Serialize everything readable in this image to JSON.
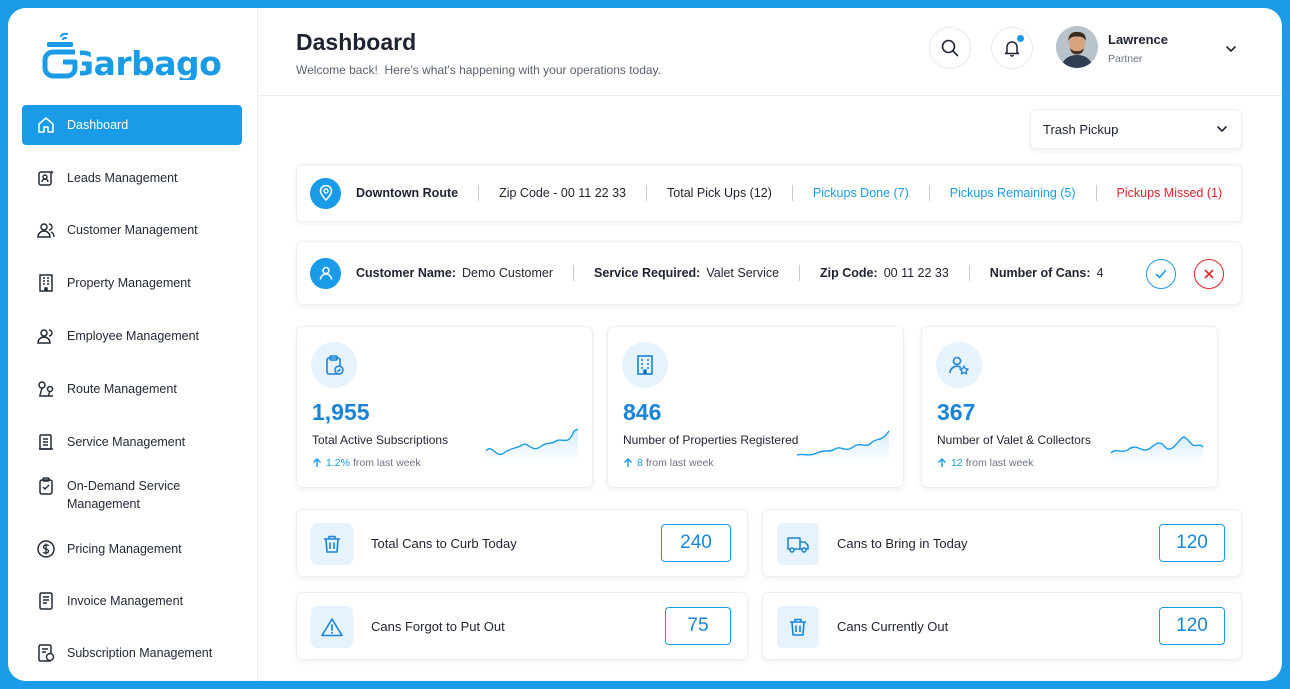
{
  "brand": {
    "name": "Garbago",
    "accent": "#1a9be8"
  },
  "sidebar": {
    "items": [
      {
        "label": "Dashboard",
        "icon": "home-icon",
        "active": true
      },
      {
        "label": "Leads Management",
        "icon": "leads-icon"
      },
      {
        "label": "Customer Management",
        "icon": "users-icon"
      },
      {
        "label": "Property Management",
        "icon": "building-icon"
      },
      {
        "label": "Employee Management",
        "icon": "employee-icon"
      },
      {
        "label": "Route Management",
        "icon": "route-icon"
      },
      {
        "label": "Service Management",
        "icon": "service-icon"
      },
      {
        "label": "On-Demand Service Management",
        "icon": "clipboard-check-icon"
      },
      {
        "label": "Pricing Management",
        "icon": "dollar-icon"
      },
      {
        "label": "Invoice Management",
        "icon": "invoice-icon"
      },
      {
        "label": "Subscription Management",
        "icon": "subscription-icon"
      }
    ]
  },
  "header": {
    "title": "Dashboard",
    "subtitle": "Welcome back!  Here's what's happening with your operations today.",
    "user": {
      "name": "Lawrence",
      "role": "Partner"
    }
  },
  "filter": {
    "selected": "Trash Pickup"
  },
  "route": {
    "name": "Downtown Route",
    "zip": "Zip Code - 00 11 22 33",
    "total": "Total Pick Ups (12)",
    "done": "Pickups Done (7)",
    "remaining": "Pickups Remaining (5)",
    "missed": "Pickups Missed (1)"
  },
  "customer": {
    "name_label": "Customer Name:",
    "name_value": "Demo Customer",
    "service_label": "Service Required:",
    "service_value": "Valet Service",
    "zip_label": "Zip Code:",
    "zip_value": "00 11 22 33",
    "cans_label": "Number of Cans:",
    "cans_value": "4"
  },
  "stats": [
    {
      "value": "1,955",
      "label": "Total Active Subscriptions",
      "delta": "1.2%",
      "delta_suffix": "from last week",
      "icon": "clipboard-check-icon"
    },
    {
      "value": "846",
      "label": "Number of Properties Registered",
      "delta": "8",
      "delta_suffix": "from last week",
      "icon": "building-icon"
    },
    {
      "value": "367",
      "label": "Number of Valet & Collectors",
      "delta": "12",
      "delta_suffix": "from last week",
      "icon": "user-star-icon"
    }
  ],
  "cans": [
    {
      "label": "Total Cans to Curb Today",
      "value": "240",
      "icon": "trash-icon"
    },
    {
      "label": "Cans to Bring in Today",
      "value": "120",
      "icon": "truck-icon"
    },
    {
      "label": "Cans Forgot to Put Out",
      "value": "75",
      "icon": "warning-icon"
    },
    {
      "label": "Cans Currently Out",
      "value": "120",
      "icon": "trash-icon"
    }
  ]
}
